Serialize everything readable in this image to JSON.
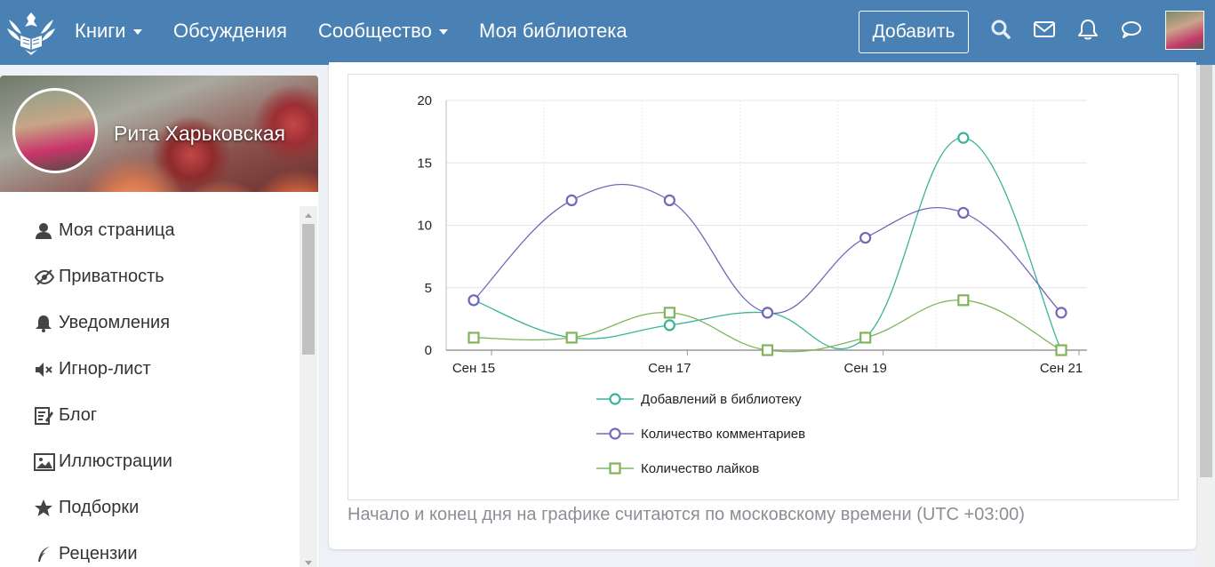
{
  "header": {
    "nav": [
      {
        "label": "Книги",
        "dropdown": true
      },
      {
        "label": "Обсуждения",
        "dropdown": false
      },
      {
        "label": "Сообщество",
        "dropdown": true
      },
      {
        "label": "Моя библиотека",
        "dropdown": false
      }
    ],
    "add_button": "Добавить",
    "icons": [
      "search-icon",
      "mail-icon",
      "bell-icon",
      "chat-icon"
    ]
  },
  "profile": {
    "name": "Рита Харьковская"
  },
  "sidebar": {
    "items": [
      {
        "label": "Моя страница",
        "icon": "user-icon"
      },
      {
        "label": "Приватность",
        "icon": "eye-slash-icon"
      },
      {
        "label": "Уведомления",
        "icon": "bell-icon"
      },
      {
        "label": "Игнор-лист",
        "icon": "mute-icon"
      },
      {
        "label": "Блог",
        "icon": "blog-icon"
      },
      {
        "label": "Иллюстрации",
        "icon": "image-icon"
      },
      {
        "label": "Подборки",
        "icon": "star-icon"
      },
      {
        "label": "Рецензии",
        "icon": "quill-icon"
      }
    ]
  },
  "main": {
    "note": "Начало и конец дня на графике считаются по московскому времени (UTC +03:00)"
  },
  "chart_data": {
    "type": "line",
    "x": [
      "Сен 15",
      "Сен 16",
      "Сен 17",
      "Сен 18",
      "Сен 19",
      "Сен 20",
      "Сен 21"
    ],
    "x_tick_labels": [
      "Сен 15",
      "Сен 17",
      "Сен 19",
      "Сен 21"
    ],
    "ylim": [
      0,
      20
    ],
    "y_ticks": [
      0,
      5,
      10,
      15,
      20
    ],
    "grid": true,
    "legend_position": "bottom",
    "series": [
      {
        "name": "Добавлений в библиотеку",
        "color": "#3bb39b",
        "marker": "circle",
        "values": [
          4,
          1,
          2,
          3,
          1,
          17,
          0
        ]
      },
      {
        "name": "Количество комментариев",
        "color": "#7468b8",
        "marker": "circle",
        "values": [
          4,
          12,
          12,
          3,
          9,
          11,
          3
        ]
      },
      {
        "name": "Количество лайков",
        "color": "#7fb55a",
        "marker": "square",
        "values": [
          1,
          1,
          3,
          0,
          1,
          4,
          0
        ]
      }
    ]
  }
}
